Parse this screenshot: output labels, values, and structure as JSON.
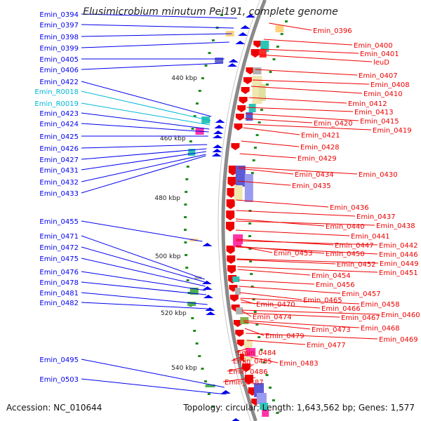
{
  "title": "Elusimicrobium minutum Pei191, complete genome",
  "footer": {
    "accession": "Accession: NC_010644",
    "summary": "Topology: circular; Length: 1,643,562 bp; Genes: 1,577"
  },
  "colors": {
    "plus_strand": "#0000ee",
    "minus_strand": "#ee0000",
    "rna": "#00b7d4",
    "ticks": "#228b22"
  },
  "scale_labels": [
    "440 kbp",
    "460 kbp",
    "480 kbp",
    "500 kbp",
    "520 kbp",
    "540 kbp"
  ],
  "left_labels": [
    {
      "id": "Emin_0394",
      "type": "cds"
    },
    {
      "id": "Emin_0397",
      "type": "cds"
    },
    {
      "id": "Emin_0398",
      "type": "cds"
    },
    {
      "id": "Emin_0399",
      "type": "cds"
    },
    {
      "id": "Emin_0405",
      "type": "cds"
    },
    {
      "id": "Emin_0406",
      "type": "cds"
    },
    {
      "id": "Emin_0422",
      "type": "cds"
    },
    {
      "id": "Emin_R0018",
      "type": "rna"
    },
    {
      "id": "Emin_R0019",
      "type": "rna"
    },
    {
      "id": "Emin_0423",
      "type": "cds"
    },
    {
      "id": "Emin_0424",
      "type": "cds"
    },
    {
      "id": "Emin_0425",
      "type": "cds"
    },
    {
      "id": "Emin_0426",
      "type": "cds"
    },
    {
      "id": "Emin_0427",
      "type": "cds"
    },
    {
      "id": "Emin_0431",
      "type": "cds"
    },
    {
      "id": "Emin_0432",
      "type": "cds"
    },
    {
      "id": "Emin_0433",
      "type": "cds"
    },
    {
      "id": "Emin_0455",
      "type": "cds"
    },
    {
      "id": "Emin_0471",
      "type": "cds"
    },
    {
      "id": "Emin_0472",
      "type": "cds"
    },
    {
      "id": "Emin_0475",
      "type": "cds"
    },
    {
      "id": "Emin_0476",
      "type": "cds"
    },
    {
      "id": "Emin_0478",
      "type": "cds"
    },
    {
      "id": "Emin_0481",
      "type": "cds"
    },
    {
      "id": "Emin_0482",
      "type": "cds"
    },
    {
      "id": "Emin_0495",
      "type": "cds"
    },
    {
      "id": "Emin_0503",
      "type": "cds"
    }
  ],
  "right_labels": [
    "Emin_0396",
    "Emin_0400",
    "Emin_0401",
    "leuD",
    "Emin_0407",
    "Emin_0408",
    "Emin_0410",
    "Emin_0412",
    "Emin_0413",
    "Emin_0415",
    "Emin_0419",
    "Emin_0420",
    "Emin_0421",
    "Emin_0428",
    "Emin_0429",
    "Emin_0430",
    "Emin_0434",
    "Emin_0435",
    "Emin_0436",
    "Emin_0437",
    "Emin_0438",
    "Emin_0440",
    "Emin_0441",
    "Emin_0442",
    "Emin_0446",
    "Emin_0447",
    "Emin_0449",
    "Emin_0450",
    "Emin_0451",
    "Emin_0452",
    "Emin_0453",
    "Emin_0454",
    "Emin_0456",
    "Emin_0457",
    "Emin_0458",
    "Emin_0460",
    "Emin_0465",
    "Emin_0466",
    "Emin_0467",
    "Emin_0468",
    "Emin_0469",
    "Emin_0470",
    "Emin_0473",
    "Emin_0474",
    "Emin_0477",
    "Emin_0479",
    "Emin_0483",
    "Emin_0484",
    "Emin_0485",
    "Emin_0486",
    "Emin_0487"
  ]
}
